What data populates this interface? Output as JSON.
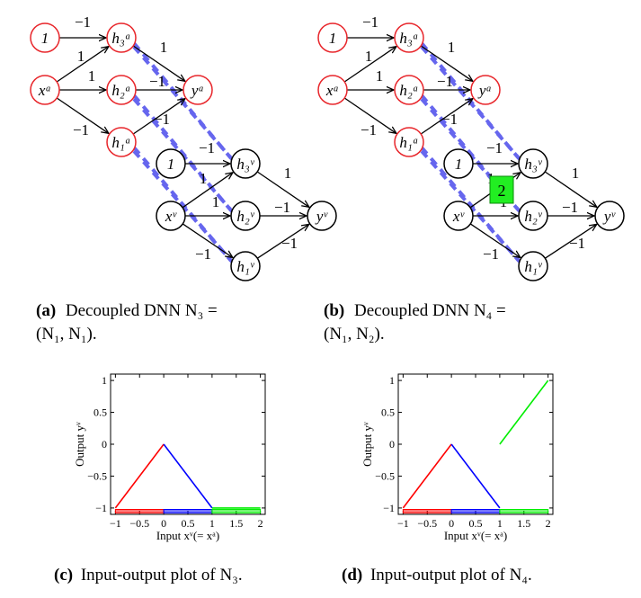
{
  "panels": [
    {
      "id": "a",
      "caption": {
        "label": "(a)",
        "text": "Decoupled DNN N₃ = (N₁, N₁).",
        "line1": "Decoupled DNN N₃ =",
        "line2": "(N₁, N₁)."
      },
      "network": {
        "act": {
          "one": "1",
          "x": "xᵃ",
          "h3": "h₃ᵃ",
          "h2": "h₂ᵃ",
          "h1": "h₁ᵃ",
          "y": "yᵃ"
        },
        "val": {
          "one": "1",
          "x": "xᵛ",
          "h3": "h₃ᵛ",
          "h2": "h₂ᵛ",
          "h1": "h₁ᵛ",
          "y": "yᵛ"
        },
        "act_weights": {
          "one_h3": "−1",
          "x_h3": "1",
          "x_h2": "1",
          "x_h1": "−1",
          "h3_y": "1",
          "h2_y": "−1",
          "h1_y": "−1"
        },
        "val_weights": {
          "one_h3": "−1",
          "x_h3": "1",
          "x_h2": "1",
          "x_h1": "−1",
          "h3_y": "1",
          "h2_y": "−1",
          "h1_y": "−1"
        },
        "badge": null
      }
    },
    {
      "id": "b",
      "caption": {
        "label": "(b)",
        "text": "Decoupled DNN N₄ = (N₁, N₂).",
        "line1": "Decoupled DNN N₄ =",
        "line2": "(N₁, N₂)."
      },
      "network": {
        "act": {
          "one": "1",
          "x": "xᵃ",
          "h3": "h₃ᵃ",
          "h2": "h₂ᵃ",
          "h1": "h₁ᵃ",
          "y": "yᵃ"
        },
        "val": {
          "one": "1",
          "x": "xᵛ",
          "h3": "h₃ᵛ",
          "h2": "h₂ᵛ",
          "h1": "h₁ᵛ",
          "y": "yᵛ"
        },
        "act_weights": {
          "one_h3": "−1",
          "x_h3": "1",
          "x_h2": "1",
          "x_h1": "−1",
          "h3_y": "1",
          "h2_y": "−1",
          "h1_y": "−1"
        },
        "val_weights": {
          "one_h3": "−1",
          "x_h3": "1",
          "x_h2": "1",
          "x_h1": "−1",
          "h3_y": "1",
          "h2_y": "−1",
          "h1_y": "−1"
        },
        "badge": "2"
      }
    },
    {
      "id": "c",
      "caption": {
        "label": "(c)",
        "text": "Input-output plot of N₃."
      }
    },
    {
      "id": "d",
      "caption": {
        "label": "(d)",
        "text": "Input-output plot of N₄."
      }
    }
  ],
  "colors": {
    "activation_node": "#e8262b",
    "value_node": "#000000",
    "coupling_dash": "#6666ee",
    "badge_fill": "#22ee22",
    "red_series": "#ff0000",
    "blue_series": "#0000ff",
    "green_series": "#00ee00"
  },
  "chart_data": [
    {
      "type": "line",
      "xlabel": "Input xᵛ(= xᵃ)",
      "ylabel": "Output yᵛ",
      "xlim": [
        -1.1,
        2.1
      ],
      "ylim": [
        -1.1,
        1.1
      ],
      "xticks": [
        "−1",
        "−0.5",
        "0",
        "0.5",
        "1",
        "1.5",
        "2"
      ],
      "xtick_values": [
        -1,
        -0.5,
        0,
        0.5,
        1,
        1.5,
        2
      ],
      "yticks": [
        "−1",
        "−0.5",
        "0",
        "0.5",
        "1"
      ],
      "ytick_values": [
        -1,
        -0.5,
        0,
        0.5,
        1
      ],
      "series": [
        {
          "color": "red_series",
          "x": [
            -1,
            0
          ],
          "y": [
            -1,
            0
          ]
        },
        {
          "color": "blue_series",
          "x": [
            0,
            1
          ],
          "y": [
            0,
            -1
          ]
        },
        {
          "color": "green_series",
          "x": [
            1,
            2
          ],
          "y": [
            -1,
            -1
          ]
        }
      ],
      "bands": [
        {
          "color": "red_series",
          "x": [
            -1,
            0
          ]
        },
        {
          "color": "blue_series",
          "x": [
            0,
            1
          ]
        },
        {
          "color": "green_series",
          "x": [
            1,
            2
          ]
        }
      ]
    },
    {
      "type": "line",
      "xlabel": "Input xᵛ(= xᵃ)",
      "ylabel": "Output yᵛ",
      "xlim": [
        -1.1,
        2.1
      ],
      "ylim": [
        -1.1,
        1.1
      ],
      "xticks": [
        "−1",
        "−0.5",
        "0",
        "0.5",
        "1",
        "1.5",
        "2"
      ],
      "xtick_values": [
        -1,
        -0.5,
        0,
        0.5,
        1,
        1.5,
        2
      ],
      "yticks": [
        "−1",
        "−0.5",
        "0",
        "0.5",
        "1"
      ],
      "ytick_values": [
        -1,
        -0.5,
        0,
        0.5,
        1
      ],
      "series": [
        {
          "color": "red_series",
          "x": [
            -1,
            0
          ],
          "y": [
            -1,
            0
          ]
        },
        {
          "color": "blue_series",
          "x": [
            0,
            1
          ],
          "y": [
            0,
            -1
          ]
        },
        {
          "color": "green_series",
          "x": [
            1,
            2
          ],
          "y": [
            0,
            1
          ]
        }
      ],
      "bands": [
        {
          "color": "red_series",
          "x": [
            -1,
            0
          ]
        },
        {
          "color": "blue_series",
          "x": [
            0,
            1
          ]
        },
        {
          "color": "green_series",
          "x": [
            1,
            2
          ]
        }
      ]
    }
  ]
}
